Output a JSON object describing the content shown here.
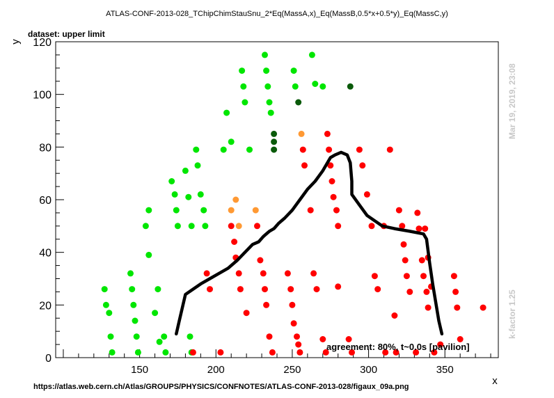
{
  "chart_data": {
    "type": "scatter",
    "title": "ATLAS-CONF-2013-028_TChipChimStauSnu_2*Eq(MassA,x)_Eq(MassB,0.5*x+0.5*y)_Eq(MassC,y)",
    "subtitle": "dataset: upper limit",
    "xlabel": "x",
    "ylabel": "y",
    "xlim": [
      95,
      385
    ],
    "ylim": [
      0,
      120
    ],
    "x_ticks": [
      150,
      200,
      250,
      300,
      350
    ],
    "y_ticks": [
      0,
      20,
      40,
      60,
      80,
      100,
      120
    ],
    "grid": false,
    "annotation": "agreement: 80%, t~0.0s [pavilion]",
    "side_text_top": "Mar 19, 2019, 23:08",
    "side_text_bottom": "k-factor 1.25",
    "source_url": "https://atlas.web.cern.ch/Atlas/GROUPS/PHYSICS/CONFNOTES/ATLAS-CONF-2013-028/figaux_09a.png",
    "colors": {
      "green": "#00e600",
      "darkgreen": "#0a5a0a",
      "orange": "#ff9933",
      "red": "#ff0000",
      "line": "#000000",
      "side_text": "#c8c8c8"
    },
    "series": [
      {
        "color_key": "green",
        "points": [
          [
            127,
            26
          ],
          [
            128,
            20
          ],
          [
            130,
            17
          ],
          [
            131,
            8
          ],
          [
            132,
            2
          ],
          [
            144,
            32
          ],
          [
            145,
            26
          ],
          [
            146,
            20
          ],
          [
            147,
            14
          ],
          [
            148,
            8
          ],
          [
            149,
            2
          ],
          [
            154,
            50
          ],
          [
            156,
            56
          ],
          [
            156,
            39
          ],
          [
            160,
            17
          ],
          [
            162,
            26
          ],
          [
            163,
            6
          ],
          [
            166,
            8
          ],
          [
            167,
            2
          ],
          [
            171,
            67
          ],
          [
            173,
            62
          ],
          [
            174,
            56
          ],
          [
            175,
            50
          ],
          [
            180,
            71
          ],
          [
            182,
            61
          ],
          [
            183,
            8
          ],
          [
            184,
            2
          ],
          [
            184,
            50
          ],
          [
            187,
            79
          ],
          [
            188,
            73
          ],
          [
            190,
            62
          ],
          [
            192,
            56
          ],
          [
            193,
            50
          ],
          [
            205,
            79
          ],
          [
            207,
            93
          ],
          [
            210,
            82
          ],
          [
            217,
            109
          ],
          [
            218,
            103
          ],
          [
            219,
            97
          ],
          [
            222,
            79
          ],
          [
            232,
            115
          ],
          [
            233,
            109
          ],
          [
            234,
            103
          ],
          [
            235,
            97
          ],
          [
            236,
            93
          ],
          [
            251,
            109
          ],
          [
            252,
            103
          ],
          [
            263,
            115
          ],
          [
            265,
            104
          ],
          [
            270,
            103
          ]
        ]
      },
      {
        "color_key": "darkgreen",
        "points": [
          [
            238,
            85
          ],
          [
            238,
            82
          ],
          [
            238,
            79
          ],
          [
            254,
            97
          ],
          [
            288,
            103
          ]
        ]
      },
      {
        "color_key": "orange",
        "points": [
          [
            210,
            56
          ],
          [
            213,
            60
          ],
          [
            215,
            50
          ],
          [
            226,
            56
          ],
          [
            256,
            85
          ]
        ]
      },
      {
        "color_key": "red",
        "points": [
          [
            185,
            2
          ],
          [
            194,
            32
          ],
          [
            196,
            26
          ],
          [
            203,
            2
          ],
          [
            210,
            50
          ],
          [
            212,
            44
          ],
          [
            213,
            38
          ],
          [
            215,
            32
          ],
          [
            216,
            26
          ],
          [
            220,
            17
          ],
          [
            227,
            50
          ],
          [
            229,
            37
          ],
          [
            231,
            32
          ],
          [
            232,
            26
          ],
          [
            233,
            20
          ],
          [
            235,
            8
          ],
          [
            237,
            2
          ],
          [
            247,
            32
          ],
          [
            249,
            26
          ],
          [
            250,
            20
          ],
          [
            251,
            13
          ],
          [
            253,
            8
          ],
          [
            254,
            5
          ],
          [
            255,
            2
          ],
          [
            257,
            79
          ],
          [
            258,
            73
          ],
          [
            262,
            56
          ],
          [
            264,
            32
          ],
          [
            266,
            26
          ],
          [
            270,
            7
          ],
          [
            272,
            2
          ],
          [
            273,
            85
          ],
          [
            274,
            79
          ],
          [
            275,
            73
          ],
          [
            276,
            67
          ],
          [
            277,
            61
          ],
          [
            279,
            56
          ],
          [
            280,
            50
          ],
          [
            280,
            27
          ],
          [
            287,
            7
          ],
          [
            289,
            2
          ],
          [
            294,
            79
          ],
          [
            296,
            73
          ],
          [
            299,
            62
          ],
          [
            302,
            50
          ],
          [
            304,
            31
          ],
          [
            306,
            26
          ],
          [
            310,
            50
          ],
          [
            311,
            2
          ],
          [
            314,
            79
          ],
          [
            317,
            16
          ],
          [
            318,
            2
          ],
          [
            320,
            56
          ],
          [
            322,
            50
          ],
          [
            323,
            43
          ],
          [
            324,
            37
          ],
          [
            325,
            31
          ],
          [
            327,
            25
          ],
          [
            331,
            2
          ],
          [
            332,
            55
          ],
          [
            333,
            49
          ],
          [
            335,
            37
          ],
          [
            336,
            31
          ],
          [
            337,
            49
          ],
          [
            338,
            25
          ],
          [
            339,
            38
          ],
          [
            339,
            19
          ],
          [
            341,
            27
          ],
          [
            343,
            2
          ],
          [
            347,
            5
          ],
          [
            356,
            31
          ],
          [
            357,
            25
          ],
          [
            358,
            19
          ],
          [
            360,
            7
          ],
          [
            375,
            19
          ]
        ]
      }
    ],
    "limit_curve": [
      [
        174,
        9
      ],
      [
        176,
        14
      ],
      [
        178,
        19
      ],
      [
        180,
        24
      ],
      [
        185,
        26
      ],
      [
        190,
        28
      ],
      [
        196,
        30
      ],
      [
        202,
        32
      ],
      [
        208,
        34
      ],
      [
        214,
        37
      ],
      [
        219,
        40
      ],
      [
        224,
        43
      ],
      [
        228,
        44
      ],
      [
        231,
        46
      ],
      [
        235,
        48
      ],
      [
        238,
        49
      ],
      [
        241,
        51
      ],
      [
        245,
        53
      ],
      [
        250,
        56
      ],
      [
        255,
        60
      ],
      [
        260,
        64
      ],
      [
        265,
        67
      ],
      [
        270,
        71
      ],
      [
        275,
        76
      ],
      [
        278,
        77
      ],
      [
        282,
        78
      ],
      [
        286,
        77
      ],
      [
        288,
        74
      ],
      [
        289,
        67
      ],
      [
        289,
        62
      ],
      [
        294,
        58
      ],
      [
        299,
        54
      ],
      [
        304,
        52
      ],
      [
        309,
        50
      ],
      [
        317,
        49
      ],
      [
        327,
        48
      ],
      [
        336,
        47
      ],
      [
        338,
        45
      ],
      [
        340,
        36
      ],
      [
        342,
        28
      ],
      [
        344,
        21
      ],
      [
        346,
        14
      ],
      [
        348,
        9
      ]
    ]
  }
}
